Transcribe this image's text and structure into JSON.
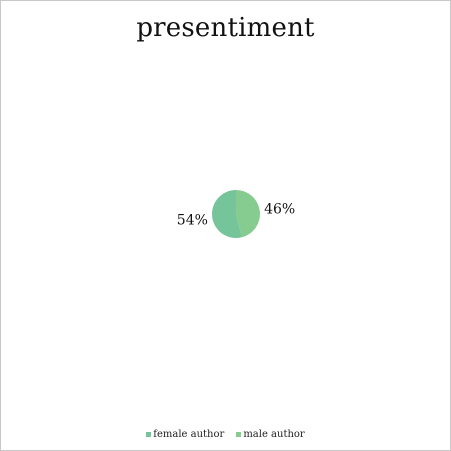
{
  "chart_data": {
    "type": "pie",
    "title": "presentiment",
    "categories": [
      "female author",
      "male author"
    ],
    "values": [
      54,
      46
    ],
    "labels": [
      "54%",
      "46%"
    ],
    "colors": [
      "#76c49a",
      "#86cb90"
    ],
    "legend": "bottom"
  }
}
